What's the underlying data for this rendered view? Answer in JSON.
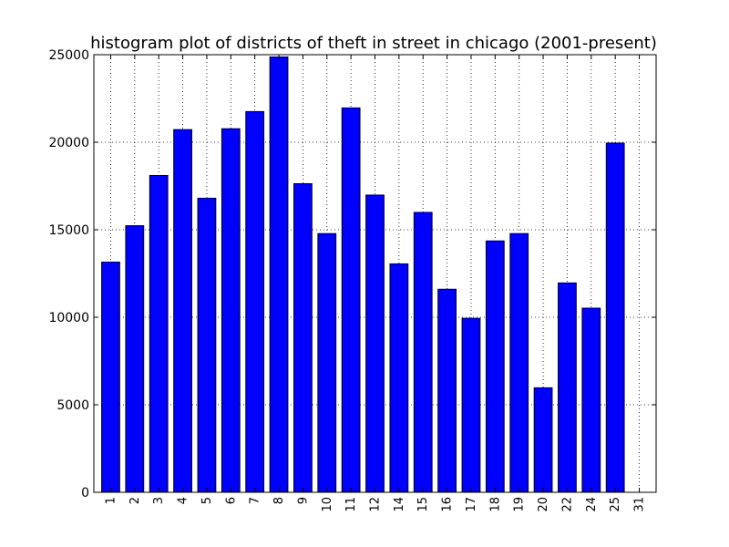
{
  "chart_data": {
    "type": "bar",
    "title": "histogram plot of districts of theft in street in chicago (2001-present)",
    "xlabel": "",
    "ylabel": "",
    "categories": [
      "1",
      "2",
      "3",
      "4",
      "5",
      "6",
      "7",
      "8",
      "9",
      "10",
      "11",
      "12",
      "14",
      "15",
      "16",
      "17",
      "18",
      "19",
      "20",
      "22",
      "24",
      "25",
      "31"
    ],
    "values": [
      13150,
      15230,
      18100,
      20720,
      16800,
      20770,
      21750,
      24870,
      17630,
      14780,
      21960,
      16980,
      13050,
      15990,
      11600,
      9940,
      14360,
      14780,
      5970,
      11960,
      10520,
      19950,
      0
    ],
    "ylim": [
      0,
      25000
    ],
    "yticks": [
      0,
      5000,
      10000,
      15000,
      20000,
      25000
    ],
    "grid": true,
    "bar_color": "#0000ff",
    "edge_color": "#000000"
  }
}
